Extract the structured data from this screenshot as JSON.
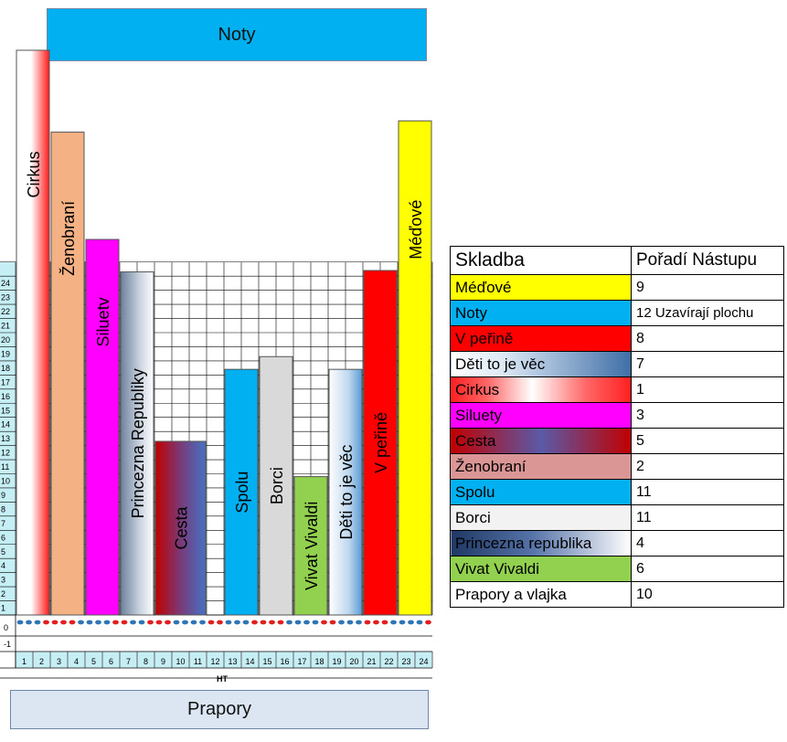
{
  "top_banner": "Noty",
  "bottom_banner": "Prapory",
  "axis_title": "HT",
  "y_ticks": [
    -1,
    0,
    1,
    2,
    3,
    4,
    5,
    6,
    7,
    8,
    9,
    10,
    11,
    12,
    13,
    14,
    15,
    16,
    17,
    18,
    19,
    20,
    21,
    22,
    23,
    24
  ],
  "x_ticks": [
    "1",
    "2",
    "3",
    "4",
    "5",
    "6",
    "7",
    "8",
    "9",
    "10",
    "11",
    "12",
    "13",
    "14",
    "15",
    "16",
    "17",
    "18",
    "19",
    "20",
    "21",
    "22",
    "23",
    "24"
  ],
  "bars": [
    {
      "label": "Cirkus",
      "col_start": 1,
      "cols": 2,
      "height": 40.0,
      "fill": "cirkus"
    },
    {
      "label": "Ženobraní",
      "col_start": 3,
      "cols": 2,
      "height": 34.2,
      "fill": "zeno"
    },
    {
      "label": "Siluetv",
      "col_start": 5,
      "cols": 2,
      "height": 26.6,
      "fill": "silu"
    },
    {
      "label": "Princezna Republiky",
      "col_start": 7,
      "cols": 2,
      "height": 24.3,
      "fill": "princ"
    },
    {
      "label": "Cesta",
      "col_start": 9,
      "cols": 3,
      "height": 12.3,
      "fill": "cesta"
    },
    {
      "label": "Spolu",
      "col_start": 13,
      "cols": 2,
      "height": 17.4,
      "fill": "spolu"
    },
    {
      "label": "Borci",
      "col_start": 15,
      "cols": 2,
      "height": 18.3,
      "fill": "borci"
    },
    {
      "label": "Vivat Vivaldi",
      "col_start": 17,
      "cols": 2,
      "height": 9.8,
      "fill": "vivat"
    },
    {
      "label": "Děti to je věc",
      "col_start": 19,
      "cols": 2,
      "height": 17.4,
      "fill": "deti"
    },
    {
      "label": "V peřině",
      "col_start": 21,
      "cols": 2,
      "height": 24.4,
      "fill": "vperine"
    },
    {
      "label": "Méďové",
      "col_start": 23,
      "cols": 2,
      "height": 35.0,
      "fill": "medove"
    }
  ],
  "legend": {
    "header": [
      "Skladba",
      "Pořadí Nástupu"
    ],
    "rows": [
      {
        "name": "Méďové",
        "order": "9",
        "fill": "medove"
      },
      {
        "name": "Noty",
        "order": "12 Uzavírají plochu",
        "fill": "noty"
      },
      {
        "name": "V peřině",
        "order": "8",
        "fill": "vperine"
      },
      {
        "name": "Děti to je věc",
        "order": "7",
        "fill": "deti_leg"
      },
      {
        "name": "Cirkus",
        "order": "1",
        "fill": "cirkus_leg"
      },
      {
        "name": "Siluety",
        "order": "3",
        "fill": "silu"
      },
      {
        "name": "Cesta",
        "order": "5",
        "fill": "cesta_leg"
      },
      {
        "name": "Ženobraní",
        "order": "2",
        "fill": "zeno_leg"
      },
      {
        "name": "Spolu",
        "order": "11",
        "fill": "spolu"
      },
      {
        "name": "Borci",
        "order": "11",
        "fill": "borci_leg"
      },
      {
        "name": "Princezna republika",
        "order": "4",
        "fill": "princ_leg"
      },
      {
        "name": "Vivat Vivaldi",
        "order": "6",
        "fill": "vivat"
      },
      {
        "name": "Prapory a vlajka",
        "order": "10",
        "fill": "white"
      }
    ]
  },
  "colors": {
    "cirkus": "#ff1a1a",
    "zeno": "#f4b183",
    "silu": "#ff00ff",
    "princ": "#7f93ad",
    "cesta_a": "#c00000",
    "cesta_b": "#4472c4",
    "spolu": "#00b0f0",
    "borci": "#d9d9d9",
    "vivat": "#92d050",
    "deti": "#9dc3e6",
    "vperine": "#ff0000",
    "medove": "#ffff00",
    "noty": "#00b0f0",
    "dot_blue": "#2e75b6",
    "dot_red": "#e02020",
    "axis_cyan": "#c6eff5"
  }
}
